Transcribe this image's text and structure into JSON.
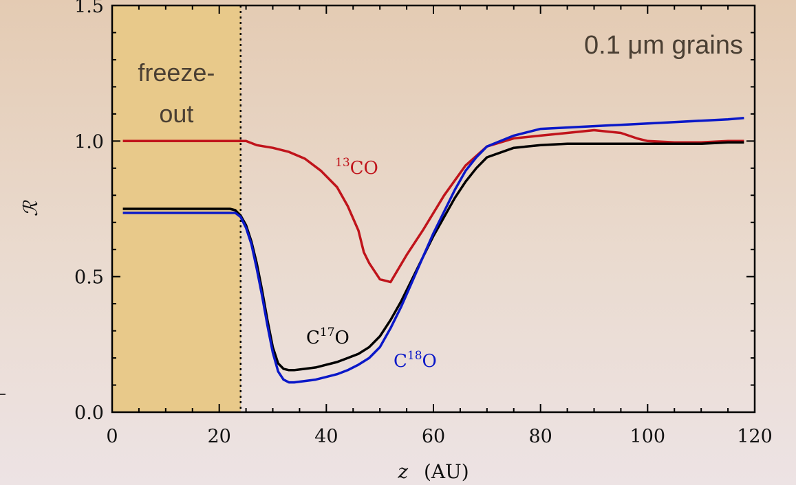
{
  "chart_data": {
    "type": "line",
    "xlabel_var": "z",
    "xlabel_unit": "(AU)",
    "ylabel": "ℛ",
    "xlim": [
      0,
      120
    ],
    "ylim": [
      0,
      1.5
    ],
    "xticks": [
      "0",
      "20",
      "40",
      "60",
      "80",
      "100",
      "120"
    ],
    "yticks": [
      "0.0",
      "0.5",
      "1.0",
      "1.5"
    ],
    "annotation": "0.1 μm grains",
    "shaded_region": {
      "x": [
        0,
        24
      ],
      "label_line1": "freeze-",
      "label_line2": "out",
      "color": "#e8c98a"
    },
    "series": [
      {
        "name_sup": "13",
        "name_main": "CO",
        "color": "#c0141b",
        "x": [
          2,
          23,
          24,
          25,
          27,
          30,
          33,
          36,
          39,
          42,
          44,
          46,
          47,
          48,
          50,
          52,
          55,
          58,
          62,
          66,
          70,
          75,
          80,
          85,
          90,
          95,
          98,
          100,
          105,
          110,
          115,
          118
        ],
        "y": [
          1.0,
          1.0,
          1.0,
          1.0,
          0.985,
          0.975,
          0.96,
          0.935,
          0.89,
          0.83,
          0.76,
          0.67,
          0.59,
          0.55,
          0.49,
          0.48,
          0.58,
          0.67,
          0.8,
          0.91,
          0.98,
          1.01,
          1.02,
          1.03,
          1.04,
          1.03,
          1.01,
          1.0,
          0.995,
          0.995,
          1.0,
          1.0
        ]
      },
      {
        "name_sup": "17",
        "name_main": "C",
        "name_tail": "O",
        "color": "#000000",
        "x": [
          2,
          22,
          23,
          24,
          25,
          26,
          27,
          28,
          29,
          30,
          31,
          32,
          33,
          34,
          36,
          38,
          40,
          42,
          44,
          46,
          48,
          50,
          52,
          54,
          56,
          58,
          60,
          62,
          64,
          66,
          68,
          70,
          75,
          80,
          85,
          90,
          95,
          100,
          105,
          110,
          115,
          118
        ],
        "y": [
          0.75,
          0.75,
          0.745,
          0.725,
          0.69,
          0.63,
          0.55,
          0.45,
          0.34,
          0.24,
          0.18,
          0.16,
          0.155,
          0.155,
          0.16,
          0.165,
          0.175,
          0.185,
          0.2,
          0.215,
          0.24,
          0.28,
          0.34,
          0.41,
          0.49,
          0.57,
          0.65,
          0.72,
          0.79,
          0.85,
          0.9,
          0.94,
          0.975,
          0.985,
          0.99,
          0.99,
          0.99,
          0.99,
          0.99,
          0.99,
          0.995,
          0.995
        ]
      },
      {
        "name_sup": "18",
        "name_main": "C",
        "name_tail": "O",
        "color": "#0a18c8",
        "x": [
          2,
          22,
          23,
          24,
          25,
          26,
          27,
          28,
          29,
          30,
          31,
          32,
          33,
          34,
          36,
          38,
          40,
          42,
          44,
          46,
          48,
          50,
          52,
          54,
          56,
          58,
          60,
          62,
          64,
          66,
          68,
          70,
          75,
          80,
          85,
          90,
          95,
          100,
          105,
          110,
          115,
          118
        ],
        "y": [
          0.735,
          0.735,
          0.735,
          0.72,
          0.68,
          0.62,
          0.53,
          0.43,
          0.32,
          0.22,
          0.15,
          0.12,
          0.11,
          0.11,
          0.115,
          0.12,
          0.13,
          0.14,
          0.155,
          0.175,
          0.2,
          0.24,
          0.31,
          0.39,
          0.48,
          0.57,
          0.66,
          0.74,
          0.82,
          0.89,
          0.94,
          0.98,
          1.02,
          1.045,
          1.05,
          1.055,
          1.06,
          1.065,
          1.07,
          1.075,
          1.08,
          1.085
        ]
      }
    ]
  }
}
